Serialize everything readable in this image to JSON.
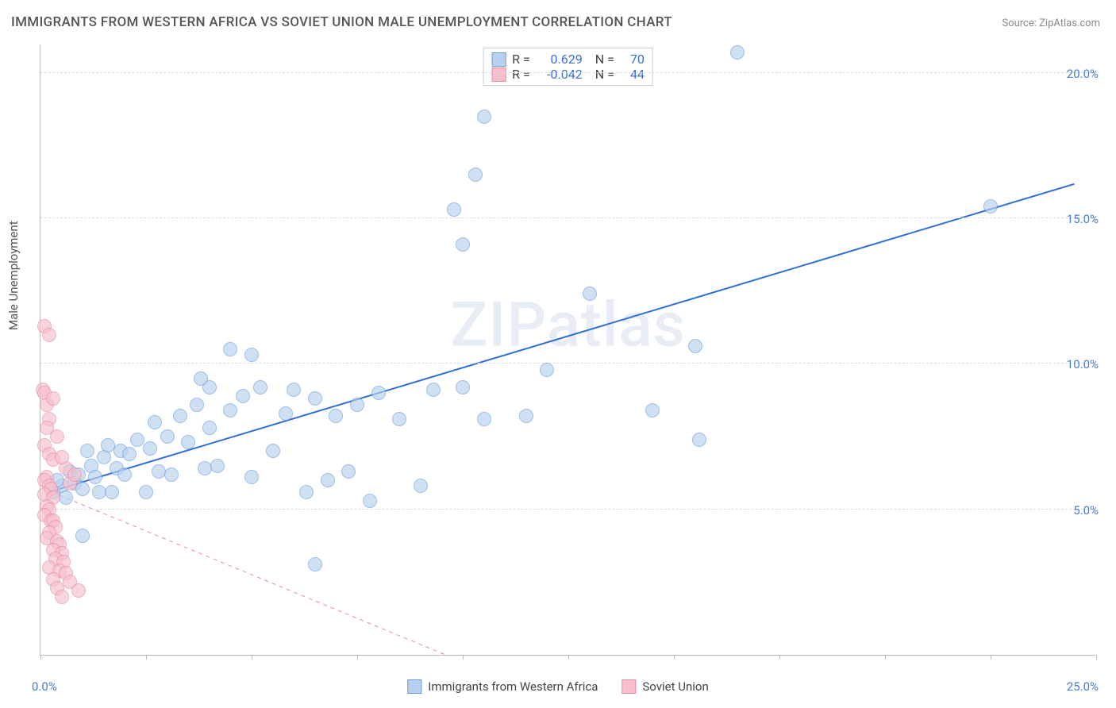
{
  "title": "IMMIGRANTS FROM WESTERN AFRICA VS SOVIET UNION MALE UNEMPLOYMENT CORRELATION CHART",
  "source_label": "Source:",
  "source_name": "ZipAtlas.com",
  "watermark": "ZIPatlas",
  "ylabel": "Male Unemployment",
  "chart": {
    "type": "scatter",
    "xlim": [
      0,
      25
    ],
    "ylim": [
      0,
      21
    ],
    "x_ticks": [
      0,
      2.5,
      5,
      7.5,
      10,
      12.5,
      15,
      17.5,
      20,
      22.5,
      25
    ],
    "y_gridlines": [
      5,
      10,
      15,
      20
    ],
    "y_tick_labels": [
      "5.0%",
      "10.0%",
      "15.0%",
      "20.0%"
    ],
    "x_origin_label": "0.0%",
    "x_max_label": "25.0%",
    "background_color": "#ffffff",
    "grid_color": "#dddddd",
    "point_radius": 9,
    "series": [
      {
        "name": "Immigrants from Western Africa",
        "fill": "#b8d0ee",
        "stroke": "#6a9edc",
        "fill_opacity": 0.65,
        "R": "0.629",
        "N": "70",
        "trend": {
          "x1": 0.2,
          "y1": 5.6,
          "x2": 24.5,
          "y2": 16.2,
          "color": "#2f6fd6",
          "width": 2,
          "dash": "none"
        },
        "points": [
          [
            0.3,
            5.6
          ],
          [
            0.5,
            5.8
          ],
          [
            0.4,
            6.0
          ],
          [
            0.6,
            5.4
          ],
          [
            0.7,
            6.3
          ],
          [
            0.8,
            5.9
          ],
          [
            0.9,
            6.2
          ],
          [
            1.0,
            5.7
          ],
          [
            1.1,
            7.0
          ],
          [
            1.2,
            6.5
          ],
          [
            1.0,
            4.1
          ],
          [
            1.3,
            6.1
          ],
          [
            1.4,
            5.6
          ],
          [
            1.5,
            6.8
          ],
          [
            1.6,
            7.2
          ],
          [
            1.7,
            5.6
          ],
          [
            1.8,
            6.4
          ],
          [
            1.9,
            7.0
          ],
          [
            2.0,
            6.2
          ],
          [
            2.1,
            6.9
          ],
          [
            2.3,
            7.4
          ],
          [
            2.5,
            5.6
          ],
          [
            2.6,
            7.1
          ],
          [
            2.7,
            8.0
          ],
          [
            2.8,
            6.3
          ],
          [
            3.0,
            7.5
          ],
          [
            3.1,
            6.2
          ],
          [
            3.3,
            8.2
          ],
          [
            3.5,
            7.3
          ],
          [
            3.7,
            8.6
          ],
          [
            3.9,
            6.4
          ],
          [
            4.0,
            7.8
          ],
          [
            4.2,
            6.5
          ],
          [
            4.5,
            8.4
          ],
          [
            4.0,
            9.2
          ],
          [
            3.8,
            9.5
          ],
          [
            4.8,
            8.9
          ],
          [
            5.0,
            6.1
          ],
          [
            5.2,
            9.2
          ],
          [
            5.5,
            7.0
          ],
          [
            5.8,
            8.3
          ],
          [
            6.0,
            9.1
          ],
          [
            4.5,
            10.5
          ],
          [
            5.0,
            10.3
          ],
          [
            6.3,
            5.6
          ],
          [
            6.5,
            8.8
          ],
          [
            6.8,
            6.0
          ],
          [
            7.0,
            8.2
          ],
          [
            7.3,
            6.3
          ],
          [
            7.5,
            8.6
          ],
          [
            7.8,
            5.3
          ],
          [
            8.0,
            9.0
          ],
          [
            6.5,
            3.1
          ],
          [
            8.5,
            8.1
          ],
          [
            9.0,
            5.8
          ],
          [
            9.3,
            9.1
          ],
          [
            10.0,
            9.2
          ],
          [
            10.5,
            8.1
          ],
          [
            10.0,
            14.1
          ],
          [
            9.8,
            15.3
          ],
          [
            10.3,
            16.5
          ],
          [
            10.5,
            18.5
          ],
          [
            11.5,
            8.2
          ],
          [
            12.0,
            9.8
          ],
          [
            13.0,
            12.4
          ],
          [
            15.5,
            10.6
          ],
          [
            15.6,
            7.4
          ],
          [
            16.5,
            20.7
          ],
          [
            22.5,
            15.4
          ],
          [
            14.5,
            8.4
          ]
        ]
      },
      {
        "name": "Soviet Union",
        "fill": "#f5c0cc",
        "stroke": "#e98aa2",
        "fill_opacity": 0.65,
        "R": "-0.042",
        "N": "44",
        "trend": {
          "x1": 0.1,
          "y1": 5.7,
          "x2": 10.6,
          "y2": -0.6,
          "color": "#e88aa0",
          "width": 1,
          "dash": "5,5"
        },
        "points": [
          [
            0.05,
            9.1
          ],
          [
            0.1,
            9.0
          ],
          [
            0.15,
            8.6
          ],
          [
            0.1,
            11.3
          ],
          [
            0.2,
            11.0
          ],
          [
            0.2,
            8.1
          ],
          [
            0.15,
            7.8
          ],
          [
            0.1,
            7.2
          ],
          [
            0.2,
            6.9
          ],
          [
            0.3,
            6.7
          ],
          [
            0.15,
            6.1
          ],
          [
            0.1,
            6.0
          ],
          [
            0.2,
            5.8
          ],
          [
            0.25,
            5.7
          ],
          [
            0.1,
            5.5
          ],
          [
            0.3,
            5.4
          ],
          [
            0.15,
            5.1
          ],
          [
            0.2,
            5.0
          ],
          [
            0.1,
            4.8
          ],
          [
            0.25,
            4.6
          ],
          [
            0.3,
            4.6
          ],
          [
            0.35,
            4.4
          ],
          [
            0.2,
            4.2
          ],
          [
            0.15,
            4.0
          ],
          [
            0.4,
            3.9
          ],
          [
            0.45,
            3.8
          ],
          [
            0.3,
            3.6
          ],
          [
            0.5,
            3.5
          ],
          [
            0.35,
            3.3
          ],
          [
            0.55,
            3.2
          ],
          [
            0.2,
            3.0
          ],
          [
            0.45,
            2.9
          ],
          [
            0.6,
            2.8
          ],
          [
            0.3,
            2.6
          ],
          [
            0.7,
            2.5
          ],
          [
            0.4,
            2.3
          ],
          [
            0.9,
            2.2
          ],
          [
            0.6,
            6.4
          ],
          [
            0.5,
            6.8
          ],
          [
            0.4,
            7.5
          ],
          [
            0.3,
            8.8
          ],
          [
            0.7,
            5.9
          ],
          [
            0.8,
            6.2
          ],
          [
            0.5,
            2.0
          ]
        ]
      }
    ]
  },
  "legend_top": {
    "R_prefix": "R =",
    "N_prefix": "N ="
  },
  "legend_bottom": [
    {
      "label": "Immigrants from Western Africa"
    },
    {
      "label": "Soviet Union"
    }
  ]
}
